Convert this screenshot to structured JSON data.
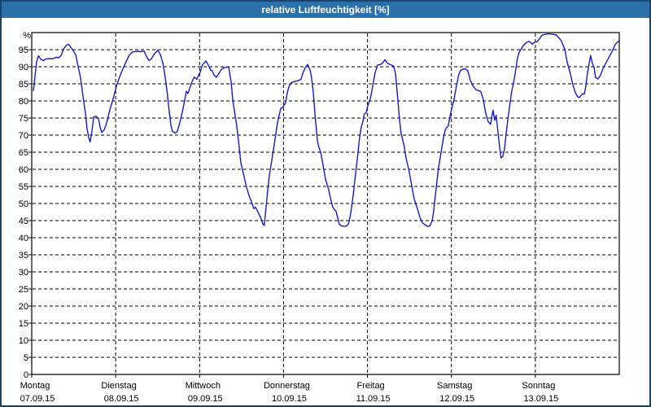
{
  "window": {
    "title": "relative Luftfeuchtigkeit [%]"
  },
  "colors": {
    "frame": "#1c426e",
    "title_bar": "#2c70a9",
    "title_text": "#ffffff",
    "background": "#ffffff",
    "axis": "#000000",
    "grid": "#000000",
    "line": "#1818cc"
  },
  "chart_data": {
    "type": "line",
    "title": "relative Luftfeuchtigkeit [%]",
    "ylabel": "%",
    "xlabel": "",
    "ylim": [
      0,
      100
    ],
    "xlim_hours": [
      0,
      168
    ],
    "grid": "dashed",
    "legend": "none",
    "y_ticks": [
      0,
      5,
      10,
      15,
      20,
      25,
      30,
      35,
      40,
      45,
      50,
      55,
      60,
      65,
      70,
      75,
      80,
      85,
      90,
      95
    ],
    "x_ticks": [
      {
        "hour": 0,
        "day": "Montag",
        "date": "07.09.15"
      },
      {
        "hour": 24,
        "day": "Dienstag",
        "date": "08.09.15"
      },
      {
        "hour": 48,
        "day": "Mittwoch",
        "date": "09.09.15"
      },
      {
        "hour": 72,
        "day": "Donnerstag",
        "date": "10.09.15"
      },
      {
        "hour": 96,
        "day": "Freitag",
        "date": "11.09.15"
      },
      {
        "hour": 120,
        "day": "Samstag",
        "date": "12.09.15"
      },
      {
        "hour": 144,
        "day": "Sonntag",
        "date": "13.09.15"
      }
    ],
    "series": [
      {
        "name": "relative Luftfeuchtigkeit [%]",
        "color": "#1818cc",
        "points": [
          [
            0.5,
            83
          ],
          [
            0.9,
            87
          ],
          [
            1.4,
            91.5
          ],
          [
            1.9,
            93.2
          ],
          [
            2.6,
            92.2
          ],
          [
            3.3,
            91.8
          ],
          [
            4.2,
            92.3
          ],
          [
            5.1,
            92.4
          ],
          [
            6,
            92.3
          ],
          [
            7,
            92.8
          ],
          [
            7.7,
            92.6
          ],
          [
            8.4,
            93.3
          ],
          [
            9.1,
            95.2
          ],
          [
            9.8,
            96.2
          ],
          [
            10.5,
            96.6
          ],
          [
            11.2,
            95.7
          ],
          [
            11.9,
            94.7
          ],
          [
            12.6,
            93.4
          ],
          [
            13.3,
            89.8
          ],
          [
            14,
            86.5
          ],
          [
            14.7,
            81
          ],
          [
            15.4,
            76
          ],
          [
            15.8,
            72
          ],
          [
            16.3,
            69.2
          ],
          [
            16.7,
            68
          ],
          [
            17.2,
            71
          ],
          [
            17.7,
            75.3
          ],
          [
            18.4,
            75.5
          ],
          [
            19.1,
            74.8
          ],
          [
            19.5,
            72.5
          ],
          [
            20,
            70.8
          ],
          [
            20.7,
            71.5
          ],
          [
            21.4,
            73.5
          ],
          [
            22.1,
            76.5
          ],
          [
            22.8,
            79
          ],
          [
            23.5,
            81.5
          ],
          [
            24.2,
            84.3
          ],
          [
            25.1,
            87
          ],
          [
            26.1,
            89.5
          ],
          [
            27,
            91.5
          ],
          [
            27.9,
            93.4
          ],
          [
            28.8,
            94.3
          ],
          [
            30,
            94.5
          ],
          [
            31.2,
            94.4
          ],
          [
            32.1,
            94.6
          ],
          [
            32.8,
            93
          ],
          [
            33.5,
            91.8
          ],
          [
            34.2,
            92.3
          ],
          [
            35.1,
            93.8
          ],
          [
            36.1,
            94.8
          ],
          [
            36.8,
            93.5
          ],
          [
            37.5,
            91
          ],
          [
            38.1,
            87.5
          ],
          [
            38.8,
            82
          ],
          [
            39.3,
            77
          ],
          [
            39.8,
            73
          ],
          [
            40.2,
            71.2
          ],
          [
            40.9,
            70.6
          ],
          [
            41.6,
            71
          ],
          [
            42.3,
            73.5
          ],
          [
            43,
            76.5
          ],
          [
            43.7,
            80
          ],
          [
            44.2,
            82.8
          ],
          [
            44.7,
            82.2
          ],
          [
            45.1,
            83.5
          ],
          [
            45.8,
            85.5
          ],
          [
            46.5,
            87
          ],
          [
            47.2,
            86.3
          ],
          [
            47.7,
            87.5
          ],
          [
            48.2,
            88.5
          ],
          [
            48.8,
            90.5
          ],
          [
            49.8,
            91.7
          ],
          [
            50.5,
            90.5
          ],
          [
            51.2,
            89
          ],
          [
            51.6,
            88.8
          ],
          [
            52.1,
            87.6
          ],
          [
            52.8,
            86.9
          ],
          [
            53.5,
            88
          ],
          [
            54.2,
            89.2
          ],
          [
            54.9,
            89.7
          ],
          [
            56.3,
            90
          ],
          [
            57,
            85.5
          ],
          [
            57.5,
            80.2
          ],
          [
            58.2,
            75.5
          ],
          [
            58.6,
            73
          ],
          [
            59.3,
            66.7
          ],
          [
            59.8,
            61.9
          ],
          [
            60.7,
            57.9
          ],
          [
            61.4,
            54.8
          ],
          [
            62.1,
            52.4
          ],
          [
            63,
            50
          ],
          [
            63.5,
            48.5
          ],
          [
            64,
            48.9
          ],
          [
            64.7,
            47.5
          ],
          [
            65.4,
            46
          ],
          [
            66.1,
            44
          ],
          [
            66.5,
            43.6
          ],
          [
            67.2,
            51
          ],
          [
            67.9,
            57.9
          ],
          [
            68.9,
            64.3
          ],
          [
            69.6,
            69
          ],
          [
            70.3,
            73.8
          ],
          [
            71.2,
            77.8
          ],
          [
            71.9,
            78.3
          ],
          [
            72.6,
            79.5
          ],
          [
            73,
            82
          ],
          [
            73.5,
            84.1
          ],
          [
            74.2,
            85.3
          ],
          [
            75.1,
            85.7
          ],
          [
            76.1,
            85.9
          ],
          [
            77,
            86.3
          ],
          [
            77.5,
            88.1
          ],
          [
            78.2,
            89.7
          ],
          [
            78.9,
            90.7
          ],
          [
            79.6,
            89
          ],
          [
            80,
            86.9
          ],
          [
            80.5,
            82.5
          ],
          [
            81,
            76
          ],
          [
            81.7,
            68.3
          ],
          [
            82.1,
            66.5
          ],
          [
            82.6,
            65
          ],
          [
            83.3,
            61.2
          ],
          [
            84,
            57.1
          ],
          [
            84.9,
            54
          ],
          [
            85.6,
            50.8
          ],
          [
            86.1,
            48.9
          ],
          [
            86.5,
            48.3
          ],
          [
            87,
            47.8
          ],
          [
            87.5,
            45.8
          ],
          [
            87.9,
            44
          ],
          [
            88.6,
            43.4
          ],
          [
            89.6,
            43.3
          ],
          [
            90.3,
            43.6
          ],
          [
            90.7,
            44.5
          ],
          [
            91.2,
            47
          ],
          [
            91.9,
            52.4
          ],
          [
            92.6,
            58.8
          ],
          [
            93.3,
            65
          ],
          [
            93.7,
            69
          ],
          [
            94.2,
            72.2
          ],
          [
            94.7,
            74
          ],
          [
            95.1,
            76.2
          ],
          [
            95.6,
            76.5
          ],
          [
            96.1,
            78.6
          ],
          [
            96.8,
            80.6
          ],
          [
            97.2,
            82.5
          ],
          [
            97.7,
            85.7
          ],
          [
            98.2,
            88.3
          ],
          [
            98.9,
            90.5
          ],
          [
            99.8,
            90.7
          ],
          [
            100.5,
            91.3
          ],
          [
            101,
            92.1
          ],
          [
            101.7,
            91
          ],
          [
            102.6,
            90.6
          ],
          [
            103.5,
            90.2
          ],
          [
            104,
            88
          ],
          [
            104.7,
            80.2
          ],
          [
            105.1,
            75
          ],
          [
            105.6,
            70.7
          ],
          [
            106.1,
            68.5
          ],
          [
            106.5,
            66.7
          ],
          [
            107,
            63.5
          ],
          [
            107.9,
            59.5
          ],
          [
            108.6,
            55.6
          ],
          [
            109.3,
            51.6
          ],
          [
            110.3,
            48.4
          ],
          [
            111,
            46
          ],
          [
            111.7,
            44.4
          ],
          [
            112.4,
            43.8
          ],
          [
            113.1,
            43.3
          ],
          [
            113.8,
            43.4
          ],
          [
            114.5,
            45
          ],
          [
            114.9,
            47.6
          ],
          [
            115.6,
            54
          ],
          [
            116.3,
            60.3
          ],
          [
            117.2,
            65.9
          ],
          [
            117.7,
            69
          ],
          [
            118.2,
            71.4
          ],
          [
            118.6,
            72.2
          ],
          [
            119.1,
            72.6
          ],
          [
            119.6,
            75.5
          ],
          [
            120.3,
            78.6
          ],
          [
            120.7,
            80.2
          ],
          [
            121.4,
            84.1
          ],
          [
            122.1,
            87.7
          ],
          [
            122.6,
            88.9
          ],
          [
            123.3,
            89.3
          ],
          [
            124,
            89.4
          ],
          [
            124.7,
            88.8
          ],
          [
            125.4,
            86.1
          ],
          [
            126.1,
            84.5
          ],
          [
            127,
            83.3
          ],
          [
            127.7,
            83
          ],
          [
            128.4,
            82.8
          ],
          [
            129.1,
            80.5
          ],
          [
            129.8,
            76.5
          ],
          [
            130.5,
            74
          ],
          [
            131.2,
            73.2
          ],
          [
            131.9,
            77.3
          ],
          [
            132.4,
            74.3
          ],
          [
            132.8,
            75.8
          ],
          [
            133.3,
            71
          ],
          [
            133.8,
            66.4
          ],
          [
            134.2,
            63.3
          ],
          [
            134.7,
            63.8
          ],
          [
            135.2,
            66
          ],
          [
            135.6,
            70
          ],
          [
            136.1,
            74.3
          ],
          [
            136.8,
            79.5
          ],
          [
            137.2,
            82.6
          ],
          [
            137.7,
            85
          ],
          [
            138.2,
            87.8
          ],
          [
            138.9,
            92.5
          ],
          [
            139.3,
            94.1
          ],
          [
            139.8,
            94.9
          ],
          [
            140.5,
            96.1
          ],
          [
            141.2,
            96.9
          ],
          [
            142.1,
            97.4
          ],
          [
            142.6,
            97.2
          ],
          [
            143.1,
            96.6
          ],
          [
            143.8,
            97.2
          ],
          [
            144.5,
            97.3
          ],
          [
            145.2,
            98.2
          ],
          [
            145.9,
            99.2
          ],
          [
            146.6,
            99.4
          ],
          [
            147.3,
            99.6
          ],
          [
            148.2,
            99.6
          ],
          [
            149.1,
            99.5
          ],
          [
            150,
            99.3
          ],
          [
            150.7,
            98.5
          ],
          [
            151.4,
            97.6
          ],
          [
            152.4,
            95.2
          ],
          [
            153.1,
            91.3
          ],
          [
            154,
            88.1
          ],
          [
            154.7,
            84.9
          ],
          [
            155.4,
            82.5
          ],
          [
            156.1,
            81.2
          ],
          [
            156.6,
            81
          ],
          [
            157,
            81.5
          ],
          [
            157.5,
            82.1
          ],
          [
            158,
            82
          ],
          [
            158.4,
            84
          ],
          [
            158.9,
            88.1
          ],
          [
            159.4,
            91
          ],
          [
            159.8,
            93.3
          ],
          [
            160.3,
            91
          ],
          [
            160.8,
            89.8
          ],
          [
            161.2,
            86.9
          ],
          [
            161.9,
            86.4
          ],
          [
            162.6,
            87.5
          ],
          [
            163.5,
            89.8
          ],
          [
            164.7,
            92.1
          ],
          [
            165.9,
            94.4
          ],
          [
            166.8,
            96.4
          ],
          [
            167.5,
            97.3
          ],
          [
            168,
            97.6
          ]
        ]
      }
    ]
  }
}
